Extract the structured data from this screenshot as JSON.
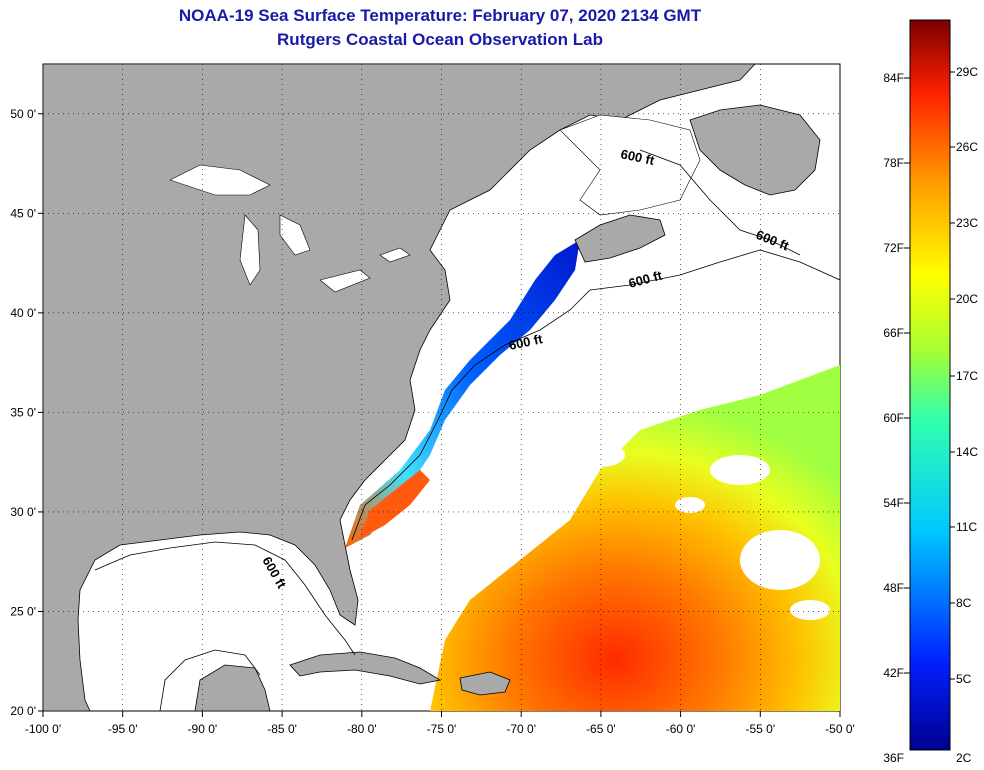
{
  "header": {
    "title": "NOAA-19 Sea Surface Temperature:  February 07, 2020 2134 GMT",
    "subtitle": "Rutgers Coastal Ocean Observation Lab"
  },
  "map": {
    "lat_ticks": [
      "50 0'",
      "45 0'",
      "40 0'",
      "35 0'",
      "30 0'",
      "25 0'",
      "20 0'"
    ],
    "lat_values": [
      50,
      45,
      40,
      35,
      30,
      25,
      20
    ],
    "lon_ticks": [
      "-100 0'",
      "-95 0'",
      "-90 0'",
      "-85 0'",
      "-80 0'",
      "-75 0'",
      "-70 0'",
      "-65 0'",
      "-60 0'",
      "-55 0'",
      "-50 0'"
    ],
    "lon_values": [
      -100,
      -95,
      -90,
      -85,
      -80,
      -75,
      -70,
      -65,
      -60,
      -55,
      -50
    ],
    "contour_label": "600 ft",
    "colors": {
      "land": "#a9a9a9",
      "ocean": "#ffffff",
      "title": "#1a1aa8"
    }
  },
  "colorbar": {
    "f_labels": [
      "84F",
      "78F",
      "72F",
      "66F",
      "60F",
      "54F",
      "48F",
      "42F",
      "36F"
    ],
    "c_labels": [
      "29C",
      "26C",
      "23C",
      "20C",
      "17C",
      "14C",
      "11C",
      "8C",
      "5C",
      "2C"
    ]
  }
}
